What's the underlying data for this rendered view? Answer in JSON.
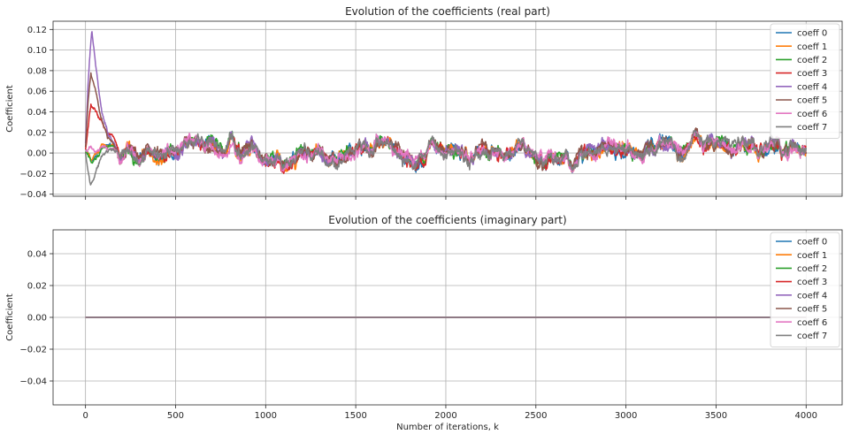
{
  "chart_data": [
    {
      "type": "line",
      "title": "Evolution of the coefficients (real part)",
      "xlabel": "",
      "ylabel": "Coefficient",
      "xlim": [
        -180,
        4200
      ],
      "ylim": [
        -0.042,
        0.128
      ],
      "xticks": [
        0,
        500,
        1000,
        1500,
        2000,
        2500,
        3000,
        3500,
        4000
      ],
      "yticks": [
        -0.04,
        -0.02,
        0.0,
        0.02,
        0.04,
        0.06,
        0.08,
        0.1,
        0.12
      ],
      "ytick_labels": [
        "−0.04",
        "−0.02",
        "0.00",
        "0.02",
        "0.04",
        "0.06",
        "0.08",
        "0.10",
        "0.12"
      ],
      "grid": true,
      "legend_position": "top-right",
      "series": [
        {
          "name": "coeff 0",
          "color": "#1f77b4",
          "noise": 0.0095,
          "envelope": [
            [
              0,
              0.0
            ],
            [
              5,
              0.004
            ],
            [
              15,
              0.0
            ],
            [
              30,
              -0.008
            ],
            [
              60,
              -0.004
            ],
            [
              100,
              0.004
            ],
            [
              180,
              0.004
            ],
            [
              400,
              -0.004
            ],
            [
              700,
              0.002
            ],
            [
              1000,
              0.004
            ],
            [
              1400,
              -0.002
            ],
            [
              1700,
              0.006
            ],
            [
              2000,
              0.0
            ],
            [
              2500,
              0.0
            ],
            [
              3000,
              0.004
            ],
            [
              3400,
              0.01
            ],
            [
              3700,
              0.004
            ],
            [
              4000,
              0.002
            ]
          ]
        },
        {
          "name": "coeff 1",
          "color": "#ff7f0e",
          "noise": 0.0095,
          "envelope": [
            [
              0,
              0.0
            ],
            [
              5,
              0.003
            ],
            [
              15,
              0.0
            ],
            [
              30,
              -0.006
            ],
            [
              60,
              -0.002
            ],
            [
              100,
              0.004
            ],
            [
              180,
              0.004
            ],
            [
              400,
              -0.004
            ],
            [
              700,
              0.002
            ],
            [
              1000,
              0.004
            ],
            [
              1400,
              -0.002
            ],
            [
              1700,
              0.006
            ],
            [
              2000,
              0.0
            ],
            [
              2500,
              0.0
            ],
            [
              3000,
              0.004
            ],
            [
              3400,
              0.01
            ],
            [
              3700,
              0.004
            ],
            [
              4000,
              0.002
            ]
          ]
        },
        {
          "name": "coeff 2",
          "color": "#2ca02c",
          "noise": 0.0095,
          "envelope": [
            [
              0,
              0.0
            ],
            [
              5,
              0.003
            ],
            [
              15,
              -0.004
            ],
            [
              30,
              -0.01
            ],
            [
              60,
              -0.006
            ],
            [
              100,
              0.002
            ],
            [
              180,
              0.004
            ],
            [
              400,
              -0.004
            ],
            [
              700,
              0.002
            ],
            [
              1000,
              0.004
            ],
            [
              1400,
              -0.002
            ],
            [
              1700,
              0.006
            ],
            [
              2000,
              0.0
            ],
            [
              2500,
              0.0
            ],
            [
              3000,
              0.004
            ],
            [
              3400,
              0.01
            ],
            [
              3700,
              0.004
            ],
            [
              4000,
              0.002
            ]
          ]
        },
        {
          "name": "coeff 3",
          "color": "#d62728",
          "noise": 0.0095,
          "envelope": [
            [
              0,
              0.004
            ],
            [
              12,
              0.02
            ],
            [
              30,
              0.046
            ],
            [
              50,
              0.04
            ],
            [
              80,
              0.028
            ],
            [
              120,
              0.016
            ],
            [
              180,
              0.006
            ],
            [
              400,
              -0.004
            ],
            [
              700,
              0.002
            ],
            [
              1000,
              0.004
            ],
            [
              1400,
              -0.002
            ],
            [
              1700,
              0.006
            ],
            [
              2000,
              0.0
            ],
            [
              2500,
              0.0
            ],
            [
              3000,
              0.004
            ],
            [
              3400,
              0.01
            ],
            [
              3700,
              0.004
            ],
            [
              4000,
              0.002
            ]
          ]
        },
        {
          "name": "coeff 4",
          "color": "#9467bd",
          "noise": 0.0095,
          "envelope": [
            [
              0,
              0.01
            ],
            [
              15,
              0.07
            ],
            [
              35,
              0.12
            ],
            [
              60,
              0.08
            ],
            [
              90,
              0.035
            ],
            [
              130,
              0.012
            ],
            [
              180,
              0.004
            ],
            [
              400,
              -0.004
            ],
            [
              700,
              0.002
            ],
            [
              1000,
              0.004
            ],
            [
              1400,
              -0.002
            ],
            [
              1700,
              0.006
            ],
            [
              2000,
              0.0
            ],
            [
              2500,
              0.0
            ],
            [
              3000,
              0.004
            ],
            [
              3400,
              0.01
            ],
            [
              3700,
              0.004
            ],
            [
              4000,
              0.002
            ]
          ]
        },
        {
          "name": "coeff 5",
          "color": "#8c564b",
          "noise": 0.0095,
          "envelope": [
            [
              0,
              0.006
            ],
            [
              15,
              0.05
            ],
            [
              30,
              0.076
            ],
            [
              55,
              0.06
            ],
            [
              85,
              0.03
            ],
            [
              125,
              0.012
            ],
            [
              180,
              0.004
            ],
            [
              400,
              -0.004
            ],
            [
              700,
              0.002
            ],
            [
              1000,
              0.004
            ],
            [
              1400,
              -0.002
            ],
            [
              1700,
              0.006
            ],
            [
              2000,
              0.0
            ],
            [
              2500,
              0.0
            ],
            [
              3000,
              0.004
            ],
            [
              3400,
              0.01
            ],
            [
              3700,
              0.004
            ],
            [
              4000,
              0.002
            ]
          ]
        },
        {
          "name": "coeff 6",
          "color": "#e377c2",
          "noise": 0.0095,
          "envelope": [
            [
              0,
              0.002
            ],
            [
              15,
              0.004
            ],
            [
              30,
              0.006
            ],
            [
              60,
              0.0
            ],
            [
              100,
              0.002
            ],
            [
              180,
              0.002
            ],
            [
              400,
              -0.004
            ],
            [
              700,
              0.002
            ],
            [
              1000,
              0.004
            ],
            [
              1400,
              -0.002
            ],
            [
              1700,
              0.006
            ],
            [
              2000,
              0.0
            ],
            [
              2500,
              0.0
            ],
            [
              3000,
              0.004
            ],
            [
              3400,
              0.01
            ],
            [
              3700,
              0.004
            ],
            [
              4000,
              0.002
            ]
          ]
        },
        {
          "name": "coeff 7",
          "color": "#7f7f7f",
          "noise": 0.0095,
          "envelope": [
            [
              0,
              0.0
            ],
            [
              10,
              -0.012
            ],
            [
              25,
              -0.03
            ],
            [
              45,
              -0.025
            ],
            [
              75,
              -0.01
            ],
            [
              120,
              0.0
            ],
            [
              180,
              0.002
            ],
            [
              400,
              -0.004
            ],
            [
              700,
              0.002
            ],
            [
              1000,
              0.004
            ],
            [
              1400,
              -0.002
            ],
            [
              1700,
              0.006
            ],
            [
              2000,
              0.0
            ],
            [
              2500,
              0.0
            ],
            [
              3000,
              0.004
            ],
            [
              3400,
              0.01
            ],
            [
              3700,
              0.004
            ],
            [
              4000,
              0.002
            ]
          ]
        }
      ]
    },
    {
      "type": "line",
      "title": "Evolution of the coefficients (imaginary part)",
      "xlabel": "Number of iterations, k",
      "ylabel": "Coefficient",
      "xlim": [
        -180,
        4200
      ],
      "ylim": [
        -0.055,
        0.055
      ],
      "xticks": [
        0,
        500,
        1000,
        1500,
        2000,
        2500,
        3000,
        3500,
        4000
      ],
      "yticks": [
        -0.04,
        -0.02,
        0.0,
        0.02,
        0.04
      ],
      "ytick_labels": [
        "−0.04",
        "−0.02",
        "0.00",
        "0.02",
        "0.04"
      ],
      "grid": true,
      "legend_position": "top-right",
      "series": [
        {
          "name": "coeff 0",
          "color": "#1f77b4",
          "x": [
            0,
            4000
          ],
          "y": [
            0.0,
            0.0
          ]
        },
        {
          "name": "coeff 1",
          "color": "#ff7f0e",
          "x": [
            0,
            4000
          ],
          "y": [
            0.0,
            0.0
          ]
        },
        {
          "name": "coeff 2",
          "color": "#2ca02c",
          "x": [
            0,
            4000
          ],
          "y": [
            0.0,
            0.0
          ]
        },
        {
          "name": "coeff 3",
          "color": "#d62728",
          "x": [
            0,
            4000
          ],
          "y": [
            0.0,
            0.0
          ]
        },
        {
          "name": "coeff 4",
          "color": "#9467bd",
          "x": [
            0,
            4000
          ],
          "y": [
            0.0,
            0.0
          ]
        },
        {
          "name": "coeff 5",
          "color": "#8c564b",
          "x": [
            0,
            4000
          ],
          "y": [
            0.0,
            0.0
          ]
        },
        {
          "name": "coeff 6",
          "color": "#e377c2",
          "x": [
            0,
            4000
          ],
          "y": [
            0.0,
            0.0
          ]
        },
        {
          "name": "coeff 7",
          "color": "#7f7f7f",
          "x": [
            0,
            4000
          ],
          "y": [
            0.0,
            0.0
          ]
        }
      ]
    }
  ]
}
